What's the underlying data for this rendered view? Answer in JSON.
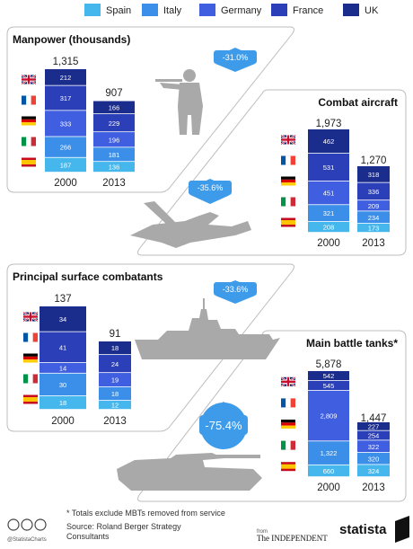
{
  "legend": [
    {
      "name": "Spain",
      "color": "#46b7ec"
    },
    {
      "name": "Italy",
      "color": "#3b8fe8"
    },
    {
      "name": "Germany",
      "color": "#3f5fe0"
    },
    {
      "name": "France",
      "color": "#2a3fb8"
    },
    {
      "name": "UK",
      "color": "#1b2d8c"
    }
  ],
  "chart_data": [
    {
      "type": "bar",
      "title": "Manpower (thousands)",
      "categories": [
        "2000",
        "2013"
      ],
      "totals": [
        "1,315",
        "907"
      ],
      "change": "-31.0%",
      "series": [
        {
          "name": "Spain",
          "values": [
            187,
            136
          ],
          "labels": [
            "187",
            "136"
          ]
        },
        {
          "name": "Italy",
          "values": [
            266,
            181
          ],
          "labels": [
            "266",
            "181"
          ]
        },
        {
          "name": "Germany",
          "values": [
            333,
            196
          ],
          "labels": [
            "333",
            "196"
          ]
        },
        {
          "name": "France",
          "values": [
            317,
            229
          ],
          "labels": [
            "317",
            "229"
          ]
        },
        {
          "name": "UK",
          "values": [
            212,
            166
          ],
          "labels": [
            "212",
            "166"
          ]
        }
      ],
      "icon": "soldier-icon"
    },
    {
      "type": "bar",
      "title": "Combat aircraft",
      "categories": [
        "2000",
        "2013"
      ],
      "totals": [
        "1,973",
        "1,270"
      ],
      "change": "-35.6%",
      "series": [
        {
          "name": "Spain",
          "values": [
            208,
            173
          ],
          "labels": [
            "208",
            "173"
          ]
        },
        {
          "name": "Italy",
          "values": [
            321,
            234
          ],
          "labels": [
            "321",
            "234"
          ]
        },
        {
          "name": "Germany",
          "values": [
            451,
            209
          ],
          "labels": [
            "451",
            "209"
          ]
        },
        {
          "name": "France",
          "values": [
            531,
            336
          ],
          "labels": [
            "531",
            "336"
          ]
        },
        {
          "name": "UK",
          "values": [
            462,
            318
          ],
          "labels": [
            "462",
            "318"
          ]
        }
      ],
      "icon": "fighter-jet-icon"
    },
    {
      "type": "bar",
      "title": "Principal surface combatants",
      "categories": [
        "2000",
        "2013"
      ],
      "totals": [
        "137",
        "91"
      ],
      "change": "-33.6%",
      "series": [
        {
          "name": "Spain",
          "values": [
            18,
            12
          ],
          "labels": [
            "18",
            "12"
          ]
        },
        {
          "name": "Italy",
          "values": [
            30,
            18
          ],
          "labels": [
            "30",
            "18"
          ]
        },
        {
          "name": "Germany",
          "values": [
            14,
            19
          ],
          "labels": [
            "14",
            "19"
          ]
        },
        {
          "name": "France",
          "values": [
            41,
            24
          ],
          "labels": [
            "41",
            "24"
          ]
        },
        {
          "name": "UK",
          "values": [
            34,
            18
          ],
          "labels": [
            "34",
            "18"
          ]
        }
      ],
      "icon": "warship-icon"
    },
    {
      "type": "bar",
      "title": "Main battle tanks*",
      "categories": [
        "2000",
        "2013"
      ],
      "totals": [
        "5,878",
        "1,447"
      ],
      "change": "-75.4%",
      "series": [
        {
          "name": "Spain",
          "values": [
            660,
            324
          ],
          "labels": [
            "660",
            "324"
          ]
        },
        {
          "name": "Italy",
          "values": [
            1322,
            320
          ],
          "labels": [
            "1,322",
            "320"
          ]
        },
        {
          "name": "Germany",
          "values": [
            2809,
            322
          ],
          "labels": [
            "2,809",
            "322"
          ]
        },
        {
          "name": "France",
          "values": [
            545,
            254
          ],
          "labels": [
            "545",
            "254"
          ]
        },
        {
          "name": "UK",
          "values": [
            542,
            227
          ],
          "labels": [
            "542",
            "227"
          ]
        }
      ],
      "icon": "tank-icon"
    }
  ],
  "footer": {
    "note": "* Totals exclude MBTs removed from service",
    "source_line1": "Source: Roland Berger Strategy",
    "source_line2": "Consultants",
    "handle": "@StatistaCharts",
    "from_label": "from",
    "partner": "The INDEPENDENT",
    "brand": "statista"
  }
}
